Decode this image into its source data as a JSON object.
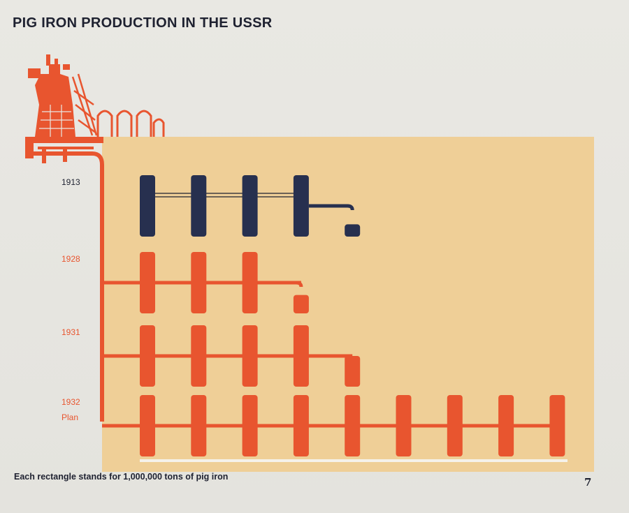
{
  "chart_data": {
    "type": "bar",
    "title": "PIG IRON PRODUCTION IN THE USSR",
    "unit_note": "Each rectangle stands for 1,000,000 tons of pig iron",
    "categories": [
      "1913",
      "1928",
      "1931",
      "1932"
    ],
    "category_sublabels": [
      "",
      "",
      "",
      "Plan"
    ],
    "values": [
      4.2,
      3.3,
      4.9,
      9.0
    ],
    "unit_value": 1000000,
    "bar_colors": [
      "#27304f",
      "#e8552f",
      "#e8552f",
      "#e8552f"
    ]
  },
  "page": {
    "number": "7"
  },
  "colors": {
    "background": "#e7e6e1",
    "panel": "#efcf97",
    "orange": "#e8552f",
    "navy": "#27304f",
    "text": "#1e2130"
  }
}
